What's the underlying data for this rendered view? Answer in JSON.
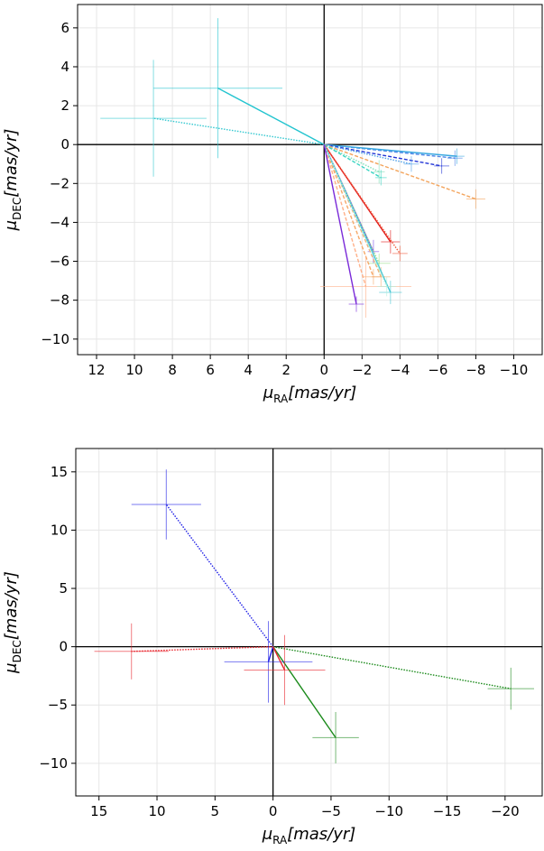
{
  "chart_data": [
    {
      "type": "scatter",
      "xlabel": "μ_RA[mas/yr]",
      "ylabel": "μ_DEC[mas/yr]",
      "xlim": [
        13,
        -11.5
      ],
      "ylim": [
        -10.8,
        7.2
      ],
      "x_reversed": true,
      "xticks": [
        12,
        10,
        8,
        6,
        4,
        2,
        0,
        -2,
        -4,
        -6,
        -8,
        -10
      ],
      "yticks": [
        6,
        4,
        2,
        0,
        -2,
        -4,
        -6,
        -8,
        -10
      ],
      "grid": true,
      "points": [
        {
          "x": 5.6,
          "y": 2.9,
          "ex": 3.4,
          "ey": 3.6,
          "color": "#22c4cf",
          "style": "solid"
        },
        {
          "x": 9.0,
          "y": 1.35,
          "ex": 2.8,
          "ey": 3.0,
          "color": "#33c8d0",
          "style": "dotted"
        },
        {
          "x": -6.9,
          "y": -0.7,
          "ex": 0.4,
          "ey": 0.4,
          "color": "#4f86e8",
          "style": "dashed"
        },
        {
          "x": -7.0,
          "y": -0.6,
          "ex": 0.4,
          "ey": 0.4,
          "color": "#3aa8e0",
          "style": "solid"
        },
        {
          "x": -6.2,
          "y": -1.1,
          "ex": 0.4,
          "ey": 0.4,
          "color": "#2336d6",
          "style": "dashed"
        },
        {
          "x": -4.6,
          "y": -1.0,
          "ex": 0.4,
          "ey": 0.4,
          "color": "#4fa0e8",
          "style": "dotted"
        },
        {
          "x": -8.0,
          "y": -2.8,
          "ex": 0.5,
          "ey": 0.5,
          "color": "#f3a45c",
          "style": "dashed"
        },
        {
          "x": -2.9,
          "y": -1.4,
          "ex": 0.3,
          "ey": 0.6,
          "color": "#7fe0b8",
          "style": "dotted"
        },
        {
          "x": -3.0,
          "y": -1.7,
          "ex": 0.3,
          "ey": 0.4,
          "color": "#38d4c2",
          "style": "dashed"
        },
        {
          "x": -3.5,
          "y": -5.0,
          "ex": 0.5,
          "ey": 0.6,
          "color": "#e11b1b",
          "style": "solid"
        },
        {
          "x": -4.0,
          "y": -5.6,
          "ex": 0.4,
          "ey": 0.4,
          "color": "#ef5a3c",
          "style": "dotted"
        },
        {
          "x": -2.6,
          "y": -5.5,
          "ex": 0.3,
          "ey": 0.6,
          "color": "#7a4fe8",
          "style": "solid"
        },
        {
          "x": -2.9,
          "y": -6.1,
          "ex": 0.6,
          "ey": 0.5,
          "color": "#9be08c",
          "style": "dotted"
        },
        {
          "x": -3.0,
          "y": -6.8,
          "ex": 0.5,
          "ey": 0.5,
          "color": "#f0b078",
          "style": "dashed"
        },
        {
          "x": -2.6,
          "y": -6.8,
          "ex": 0.6,
          "ey": 0.4,
          "color": "#f6a868",
          "style": "dashed"
        },
        {
          "x": -2.2,
          "y": -7.3,
          "ex": 2.4,
          "ey": 1.6,
          "color": "#ffb088",
          "style": "dashed"
        },
        {
          "x": -3.5,
          "y": -7.6,
          "ex": 0.6,
          "ey": 0.6,
          "color": "#46c6d4",
          "style": "solid"
        },
        {
          "x": -3.3,
          "y": -7.3,
          "ex": 0.5,
          "ey": 0.5,
          "color": "#b0f0e0",
          "style": "dotted"
        },
        {
          "x": -1.7,
          "y": -8.2,
          "ex": 0.4,
          "ey": 0.4,
          "color": "#7a2ad8",
          "style": "solid"
        }
      ]
    },
    {
      "type": "scatter",
      "xlabel": "μ_RA[mas/yr]",
      "ylabel": "μ_DEC[mas/yr]",
      "xlim": [
        17,
        -23.2
      ],
      "ylim": [
        -12.8,
        17
      ],
      "x_reversed": true,
      "xticks": [
        15,
        10,
        5,
        0,
        -5,
        -10,
        -15,
        -20
      ],
      "yticks": [
        15,
        10,
        5,
        0,
        -5,
        -10
      ],
      "grid": true,
      "points": [
        {
          "x": 9.2,
          "y": 12.2,
          "ex": 3.0,
          "ey": 3.0,
          "color": "#1f1fe6",
          "style": "dotted"
        },
        {
          "x": 12.2,
          "y": -0.4,
          "ex": 3.2,
          "ey": 2.4,
          "color": "#e8232b",
          "style": "dotted"
        },
        {
          "x": -20.5,
          "y": -3.6,
          "ex": 2.0,
          "ey": 1.8,
          "color": "#1a8a1a",
          "style": "dotted"
        },
        {
          "x": -5.4,
          "y": -7.8,
          "ex": 2.0,
          "ey": 2.2,
          "color": "#1a8a1a",
          "style": "solid"
        },
        {
          "x": 0.4,
          "y": -1.3,
          "ex": 3.8,
          "ey": 3.5,
          "color": "#1f1fe6",
          "style": "solid"
        },
        {
          "x": -1.0,
          "y": -2.0,
          "ex": 3.5,
          "ey": 3.0,
          "color": "#e8232b",
          "style": "solid"
        }
      ]
    }
  ]
}
